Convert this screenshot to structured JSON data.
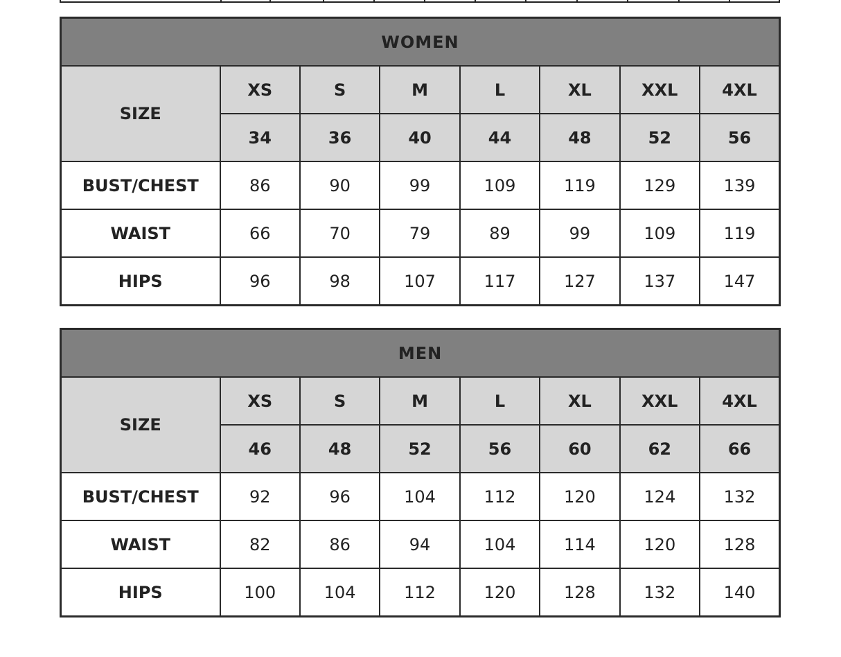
{
  "tables": [
    {
      "title": "WOMEN",
      "size_label": "SIZE",
      "sizes": [
        "XS",
        "S",
        "M",
        "L",
        "XL",
        "XXL",
        "4XL"
      ],
      "numeric_sizes": [
        "34",
        "36",
        "40",
        "44",
        "48",
        "52",
        "56"
      ],
      "rows": [
        {
          "label": "BUST/CHEST",
          "values": [
            "86",
            "90",
            "99",
            "109",
            "119",
            "129",
            "139"
          ]
        },
        {
          "label": "WAIST",
          "values": [
            "66",
            "70",
            "79",
            "89",
            "99",
            "109",
            "119"
          ]
        },
        {
          "label": "HIPS",
          "values": [
            "96",
            "98",
            "107",
            "117",
            "127",
            "137",
            "147"
          ]
        }
      ]
    },
    {
      "title": "MEN",
      "size_label": "SIZE",
      "sizes": [
        "XS",
        "S",
        "M",
        "L",
        "XL",
        "XXL",
        "4XL"
      ],
      "numeric_sizes": [
        "46",
        "48",
        "52",
        "56",
        "60",
        "62",
        "66"
      ],
      "rows": [
        {
          "label": "BUST/CHEST",
          "values": [
            "92",
            "96",
            "104",
            "112",
            "120",
            "124",
            "132"
          ]
        },
        {
          "label": "WAIST",
          "values": [
            "82",
            "86",
            "94",
            "104",
            "114",
            "120",
            "128"
          ]
        },
        {
          "label": "HIPS",
          "values": [
            "100",
            "104",
            "112",
            "120",
            "128",
            "132",
            "140"
          ]
        }
      ]
    }
  ],
  "colors": {
    "title_bg": "#808080",
    "header_bg": "#d6d6d6",
    "border": "#2a2a2a"
  }
}
